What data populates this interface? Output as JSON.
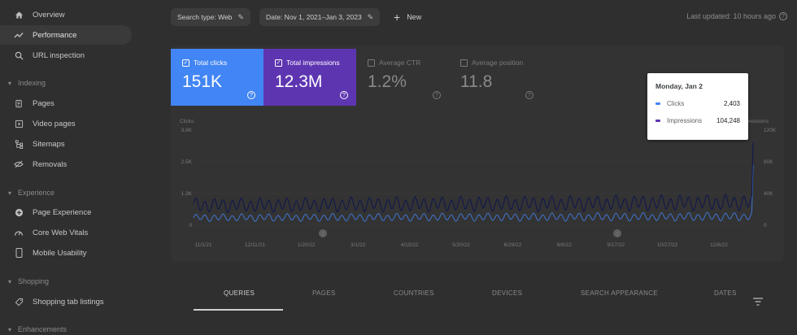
{
  "sidebar": {
    "items": [
      {
        "label": "Overview",
        "icon": "home-icon"
      },
      {
        "label": "Performance",
        "icon": "trending-up-icon"
      },
      {
        "label": "URL inspection",
        "icon": "search-icon"
      }
    ],
    "sections": [
      {
        "title": "Indexing",
        "items": [
          {
            "label": "Pages",
            "icon": "pages-icon"
          },
          {
            "label": "Video pages",
            "icon": "video-pages-icon"
          },
          {
            "label": "Sitemaps",
            "icon": "sitemap-icon"
          },
          {
            "label": "Removals",
            "icon": "removals-icon"
          }
        ]
      },
      {
        "title": "Experience",
        "items": [
          {
            "label": "Page Experience",
            "icon": "plus-circle-icon"
          },
          {
            "label": "Core Web Vitals",
            "icon": "gauge-icon"
          },
          {
            "label": "Mobile Usability",
            "icon": "phone-icon"
          }
        ]
      },
      {
        "title": "Shopping",
        "items": [
          {
            "label": "Shopping tab listings",
            "icon": "tag-icon"
          }
        ]
      },
      {
        "title": "Enhancements",
        "items": []
      }
    ]
  },
  "toolbar": {
    "search_type": "Search type: Web",
    "date_range": "Date: Nov 1, 2021–Jan 3, 2023",
    "new_label": "New",
    "last_updated": "Last updated: 10 hours ago"
  },
  "metrics": {
    "clicks": {
      "label": "Total clicks",
      "value": "151K",
      "checked": true,
      "color": "#4285f4"
    },
    "impressions": {
      "label": "Total impressions",
      "value": "12.3M",
      "checked": true,
      "color": "#5e35b1"
    },
    "ctr": {
      "label": "Average CTR",
      "value": "1.2%",
      "checked": false
    },
    "position": {
      "label": "Average position",
      "value": "11.8",
      "checked": false
    }
  },
  "chart_data": {
    "type": "line",
    "left_axis_label": "Clicks",
    "right_axis_label": "Impressions",
    "left_ticks": [
      "3.8K",
      "2.5K",
      "1.3K",
      "0"
    ],
    "right_ticks": [
      "120K",
      "80K",
      "40K",
      "0"
    ],
    "x_ticks": [
      "11/1/21",
      "12/11/21",
      "1/20/22",
      "3/1/22",
      "4/10/22",
      "5/20/22",
      "6/29/22",
      "8/8/22",
      "9/17/22",
      "10/27/22",
      "12/6/22"
    ],
    "annotation_markers": [
      {
        "label": "1"
      },
      {
        "label": "1"
      }
    ],
    "series": [
      {
        "name": "Clicks",
        "color": "#4285f4",
        "baseline": 300,
        "amplitude": 150,
        "last": 2403
      },
      {
        "name": "Impressions",
        "color": "#212a6b",
        "baseline": 25000,
        "amplitude": 9000,
        "last": 104248
      }
    ]
  },
  "tooltip": {
    "date": "Monday, Jan 2",
    "rows": [
      {
        "name": "Clicks",
        "value": "2,403",
        "color": "#4285f4"
      },
      {
        "name": "Impressions",
        "value": "104,248",
        "color": "#5e35b1"
      }
    ]
  },
  "tabs": [
    "QUERIES",
    "PAGES",
    "COUNTRIES",
    "DEVICES",
    "SEARCH APPEARANCE",
    "DATES"
  ]
}
